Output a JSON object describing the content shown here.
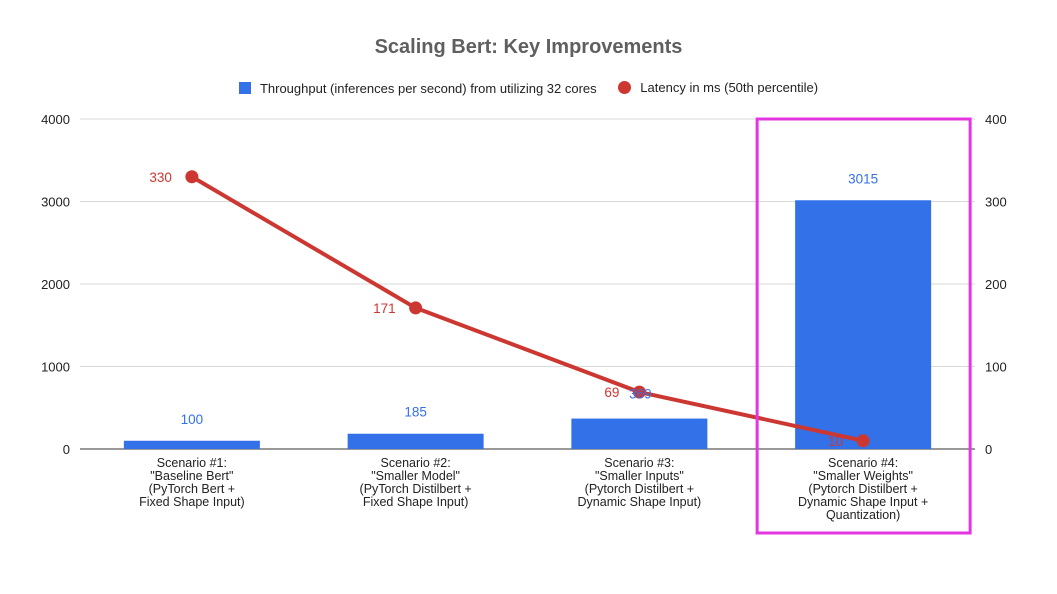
{
  "chart_data": {
    "type": "bar",
    "title": "Scaling Bert: Key Improvements",
    "categories": [
      [
        "Scenario #1:",
        "\"Baseline Bert\"",
        "(PyTorch Bert +",
        "Fixed Shape Input)"
      ],
      [
        "Scenario #2:",
        "\"Smaller Model\"",
        "(PyTorch Distilbert +",
        "Fixed Shape Input)"
      ],
      [
        "Scenario #3:",
        "\"Smaller Inputs\"",
        "(Pytorch Distilbert +",
        "Dynamic Shape Input)"
      ],
      [
        "Scenario #4:",
        "\"Smaller Weights\"",
        "(Pytorch Distilbert +",
        "Dynamic Shape Input +",
        "Quantization)"
      ]
    ],
    "series": [
      {
        "name": "Throughput (inferences per second) from utilizing 32 cores",
        "type": "bar",
        "axis": "left",
        "color": "#3371e9",
        "values": [
          100,
          185,
          369,
          3015
        ],
        "labels": [
          "100",
          "185",
          "369",
          "3015"
        ]
      },
      {
        "name": "Latency in ms (50th percentile)",
        "type": "line",
        "axis": "right",
        "color": "#cc3731",
        "values": [
          330,
          171,
          69,
          10
        ],
        "labels": [
          "330",
          "171",
          "69",
          "10"
        ]
      }
    ],
    "y_left": {
      "lim": [
        0,
        4000
      ],
      "ticks": [
        "0",
        "1000",
        "2000",
        "3000",
        "4000"
      ]
    },
    "y_right": {
      "lim": [
        0,
        400
      ],
      "ticks": [
        "0",
        "100",
        "200",
        "300",
        "400"
      ]
    },
    "grid": true,
    "legend_position": "top",
    "highlight": {
      "category_index": 3,
      "color": "#e335e0"
    }
  }
}
